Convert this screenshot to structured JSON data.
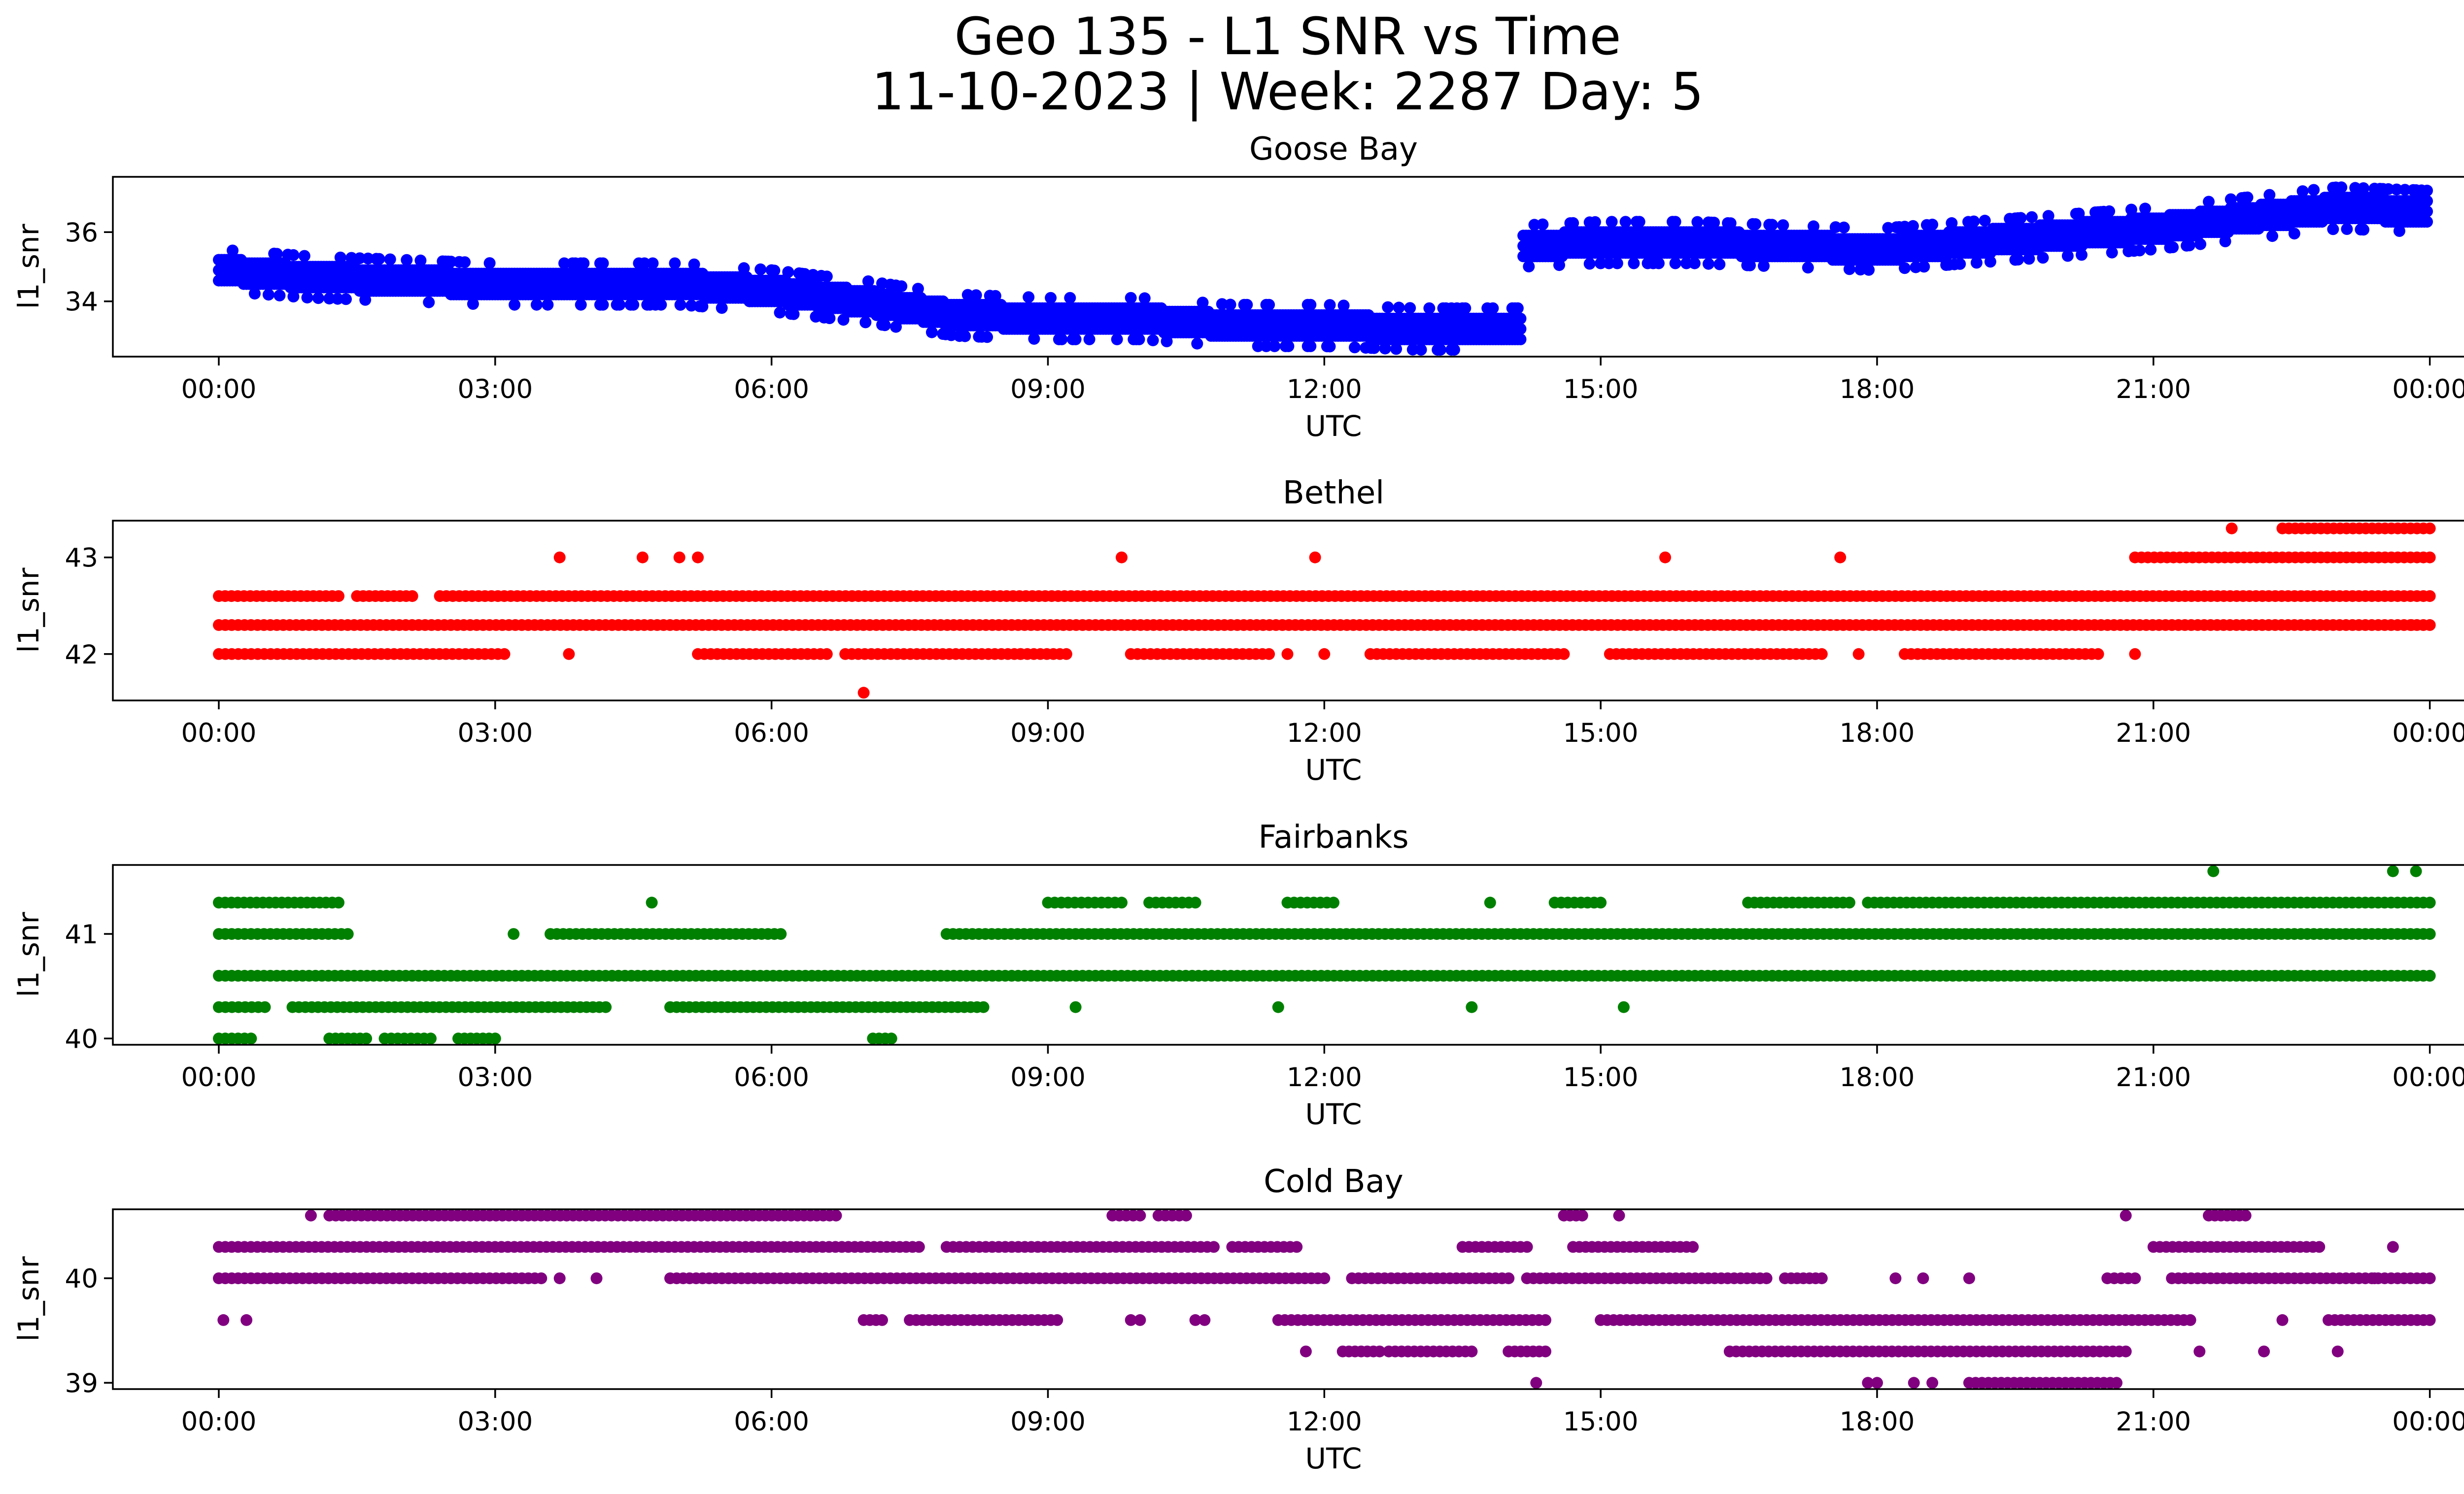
{
  "figure": {
    "title_line1": "Geo 135 - L1 SNR vs Time",
    "title_line2": "11-10-2023 | Week: 2287 Day: 5"
  },
  "chart_data": [
    {
      "type": "scatter",
      "title": "Goose Bay",
      "xlabel": "UTC",
      "ylabel": "l1_snr",
      "color": "#0000ff",
      "x_range_hours": [
        -1.15,
        25.35
      ],
      "x_ticks": [
        "00:00",
        "03:00",
        "06:00",
        "09:00",
        "12:00",
        "15:00",
        "18:00",
        "21:00",
        "00:00"
      ],
      "y_range": [
        32.4,
        37.6
      ],
      "y_ticks": [
        34,
        36
      ],
      "series_trend": {
        "x_hours": [
          0,
          0.5,
          1,
          2,
          3,
          4,
          5,
          6,
          7,
          8,
          9,
          10,
          11,
          12,
          13,
          14.15,
          14.16,
          15,
          16,
          17,
          18,
          19,
          20,
          21,
          22,
          23,
          24
        ],
        "y": [
          34.9,
          34.8,
          34.7,
          34.6,
          34.5,
          34.5,
          34.5,
          34.3,
          34.0,
          33.6,
          33.5,
          33.5,
          33.3,
          33.3,
          33.2,
          33.2,
          35.6,
          35.7,
          35.7,
          35.6,
          35.5,
          35.7,
          35.9,
          36.1,
          36.4,
          36.7,
          36.6
        ]
      }
    },
    {
      "type": "scatter",
      "title": "Bethel",
      "xlabel": "UTC",
      "ylabel": "l1_snr",
      "color": "#ff0000",
      "x_range_hours": [
        -1.15,
        25.35
      ],
      "x_ticks": [
        "00:00",
        "03:00",
        "06:00",
        "09:00",
        "12:00",
        "15:00",
        "18:00",
        "21:00",
        "00:00"
      ],
      "y_range": [
        41.52,
        43.38
      ],
      "y_ticks": [
        42,
        43
      ],
      "levels": [
        {
          "y": 42.3,
          "segments": [
            [
              0,
              24
            ]
          ]
        },
        {
          "y": 42.6,
          "segments": [
            [
              0,
              1.3
            ],
            [
              1.5,
              2.1
            ],
            [
              2.4,
              24
            ]
          ]
        },
        {
          "y": 42.0,
          "segments": [
            [
              0,
              3.1
            ],
            [
              5.2,
              6.6
            ],
            [
              6.8,
              9.2
            ],
            [
              9.9,
              11.4
            ],
            [
              12.5,
              14.6
            ],
            [
              15.1,
              17.4
            ],
            [
              18.3,
              20.4
            ]
          ]
        },
        {
          "y": 43.0,
          "segments": [
            [
              20.8,
              24
            ]
          ]
        },
        {
          "y": 43.3,
          "segments": [
            [
              22.4,
              24
            ]
          ]
        }
      ],
      "isolated_points": [
        [
          3.7,
          43.0
        ],
        [
          4.6,
          43.0
        ],
        [
          5.0,
          43.0
        ],
        [
          5.2,
          43.0
        ],
        [
          9.8,
          43.0
        ],
        [
          11.9,
          43.0
        ],
        [
          15.7,
          43.0
        ],
        [
          17.6,
          43.0
        ],
        [
          21.85,
          43.3
        ],
        [
          23.8,
          42.3
        ],
        [
          3.8,
          42.0
        ],
        [
          7.0,
          41.6
        ],
        [
          8.7,
          42.0
        ],
        [
          11.6,
          42.0
        ],
        [
          12.0,
          42.0
        ],
        [
          17.8,
          42.0
        ],
        [
          20.8,
          42.0
        ]
      ]
    },
    {
      "type": "scatter",
      "title": "Fairbanks",
      "xlabel": "UTC",
      "ylabel": "l1_snr",
      "color": "#008000",
      "x_range_hours": [
        -1.15,
        25.35
      ],
      "x_ticks": [
        "00:00",
        "03:00",
        "06:00",
        "09:00",
        "12:00",
        "15:00",
        "18:00",
        "21:00",
        "00:00"
      ],
      "y_range": [
        39.94,
        41.66
      ],
      "y_ticks": [
        40,
        41
      ],
      "levels": [
        {
          "y": 40.6,
          "segments": [
            [
              0,
              24
            ]
          ]
        },
        {
          "y": 41.0,
          "segments": [
            [
              0,
              1.4
            ],
            [
              3.6,
              6.1
            ],
            [
              7.9,
              24
            ]
          ]
        },
        {
          "y": 41.3,
          "segments": [
            [
              0,
              1.3
            ],
            [
              9.0,
              9.8
            ],
            [
              10.1,
              10.6
            ],
            [
              11.6,
              12.1
            ],
            [
              14.5,
              15.0
            ],
            [
              16.6,
              17.7
            ],
            [
              17.9,
              24
            ]
          ]
        },
        {
          "y": 40.3,
          "segments": [
            [
              0,
              0.5
            ],
            [
              0.8,
              4.2
            ],
            [
              4.9,
              8.3
            ]
          ]
        },
        {
          "y": 40.0,
          "segments": [
            [
              0,
              0.35
            ],
            [
              1.2,
              1.6
            ],
            [
              1.8,
              2.3
            ],
            [
              2.6,
              3.0
            ],
            [
              7.1,
              7.3
            ]
          ]
        }
      ],
      "isolated_points": [
        [
          4.7,
          41.3
        ],
        [
          13.8,
          41.3
        ],
        [
          21.65,
          41.6
        ],
        [
          23.6,
          41.6
        ],
        [
          23.85,
          41.6
        ],
        [
          3.2,
          41.0
        ],
        [
          11.5,
          40.3
        ],
        [
          15.25,
          40.3
        ],
        [
          13.6,
          40.3
        ],
        [
          9.3,
          40.3
        ]
      ]
    },
    {
      "type": "scatter",
      "title": "Cold Bay",
      "xlabel": "UTC",
      "ylabel": "l1_snr",
      "color": "#800080",
      "x_range_hours": [
        -1.15,
        25.35
      ],
      "x_ticks": [
        "00:00",
        "03:00",
        "06:00",
        "09:00",
        "12:00",
        "15:00",
        "18:00",
        "21:00",
        "00:00"
      ],
      "y_range": [
        38.94,
        40.66
      ],
      "y_ticks": [
        39,
        40
      ],
      "levels": [
        {
          "y": 40.6,
          "segments": [
            [
              1.2,
              6.7
            ],
            [
              9.7,
              10.0
            ],
            [
              10.2,
              10.5
            ],
            [
              14.6,
              14.8
            ],
            [
              21.6,
              22.0
            ]
          ]
        },
        {
          "y": 40.3,
          "segments": [
            [
              0,
              7.6
            ],
            [
              7.9,
              10.8
            ],
            [
              11.0,
              11.7
            ],
            [
              13.5,
              14.2
            ],
            [
              14.7,
              16.0
            ],
            [
              21.0,
              22.8
            ]
          ]
        },
        {
          "y": 40.0,
          "segments": [
            [
              0,
              3.5
            ],
            [
              4.9,
              12.0
            ],
            [
              12.3,
              14.0
            ],
            [
              14.2,
              16.8
            ],
            [
              17.0,
              17.4
            ],
            [
              20.5,
              20.8
            ],
            [
              21.2,
              24
            ]
          ]
        },
        {
          "y": 39.6,
          "segments": [
            [
              7.0,
              7.2
            ],
            [
              7.5,
              9.1
            ],
            [
              9.9,
              10.0
            ],
            [
              10.6,
              10.7
            ],
            [
              11.5,
              14.4
            ],
            [
              15.0,
              21.4
            ],
            [
              22.9,
              24
            ]
          ]
        },
        {
          "y": 39.3,
          "segments": [
            [
              12.2,
              12.6
            ],
            [
              12.7,
              13.6
            ],
            [
              14.0,
              14.4
            ],
            [
              16.4,
              20.7
            ]
          ]
        },
        {
          "y": 39.0,
          "segments": [
            [
              17.9,
              18.0
            ],
            [
              19.0,
              20.6
            ]
          ]
        }
      ],
      "isolated_points": [
        [
          0.05,
          39.6
        ],
        [
          0.3,
          39.6
        ],
        [
          1.0,
          40.6
        ],
        [
          3.7,
          40.0
        ],
        [
          4.1,
          40.0
        ],
        [
          15.2,
          40.6
        ],
        [
          18.2,
          40.0
        ],
        [
          18.5,
          40.0
        ],
        [
          19.0,
          40.0
        ],
        [
          20.7,
          40.6
        ],
        [
          11.8,
          39.3
        ],
        [
          14.3,
          39.0
        ],
        [
          18.4,
          39.0
        ],
        [
          18.6,
          39.0
        ],
        [
          21.5,
          39.3
        ],
        [
          22.2,
          39.3
        ],
        [
          23.0,
          39.3
        ],
        [
          23.6,
          40.3
        ],
        [
          22.4,
          39.6
        ],
        [
          23.4,
          40.0
        ]
      ]
    }
  ]
}
